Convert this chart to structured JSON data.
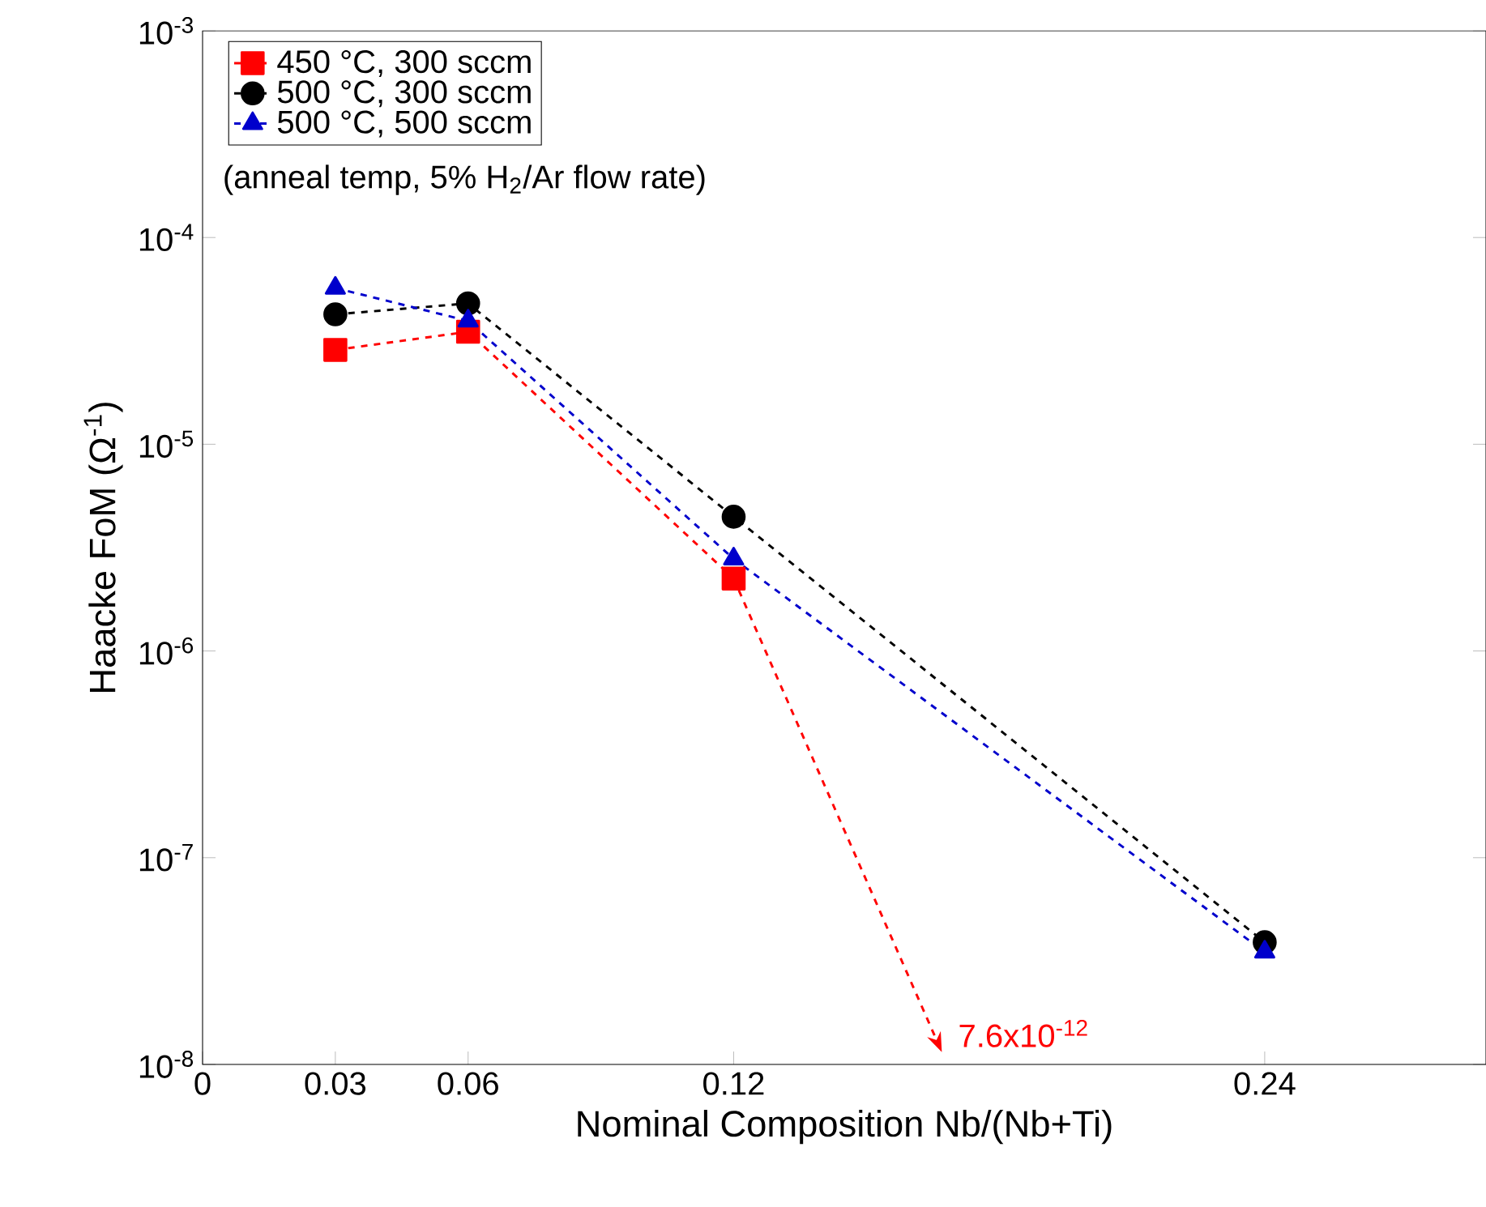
{
  "chart_data": {
    "type": "line",
    "xlabel": "Nominal Composition Nb/(Nb+Ti)",
    "ylabel": "Haacke FoM (Ω$^{-1}$)",
    "log": "y",
    "grid": false,
    "legend": "top left",
    "line_style": "dashed",
    "xlim": [
      0,
      0.29
    ],
    "ylim": [
      1e-08,
      0.001
    ],
    "xticks": [
      0,
      0.03,
      0.06,
      0.12,
      0.24
    ],
    "yticks": [
      {
        "value": 1e-08,
        "label": "10$^{-8}$"
      },
      {
        "value": 1e-07,
        "label": "10$^{-7}$"
      },
      {
        "value": 1e-06,
        "label": "10$^{-6}$"
      },
      {
        "value": 1e-05,
        "label": "10$^{-5}$"
      },
      {
        "value": 0.0001,
        "label": "10$^{-4}$"
      },
      {
        "value": 0.001,
        "label": "10$^{-3}$"
      }
    ],
    "series": [
      {
        "name": "450 °C, 300 sccm",
        "color": "#ff0000",
        "marker": "square",
        "x": [
          0.03,
          0.06,
          0.12
        ],
        "values": [
          2.86e-05,
          3.5e-05,
          2.24e-06
        ]
      },
      {
        "name": "500 °C, 300 sccm",
        "color": "#000000",
        "marker": "circle",
        "x": [
          0.03,
          0.06,
          0.12,
          0.24
        ],
        "values": [
          4.25e-05,
          4.8e-05,
          4.46e-06,
          3.9e-08
        ]
      },
      {
        "name": "500 °C, 500 sccm",
        "color": "#0000cc",
        "marker": "triangle",
        "x": [
          0.03,
          0.06,
          0.12,
          0.24
        ],
        "values": [
          5.7e-05,
          3.95e-05,
          2.79e-06,
          3.5e-08
        ]
      }
    ],
    "annotations": [
      "(anneal temp, 5% H$_{2}$/Ar flow rate)",
      "7.6x10$^{-12}$"
    ]
  }
}
